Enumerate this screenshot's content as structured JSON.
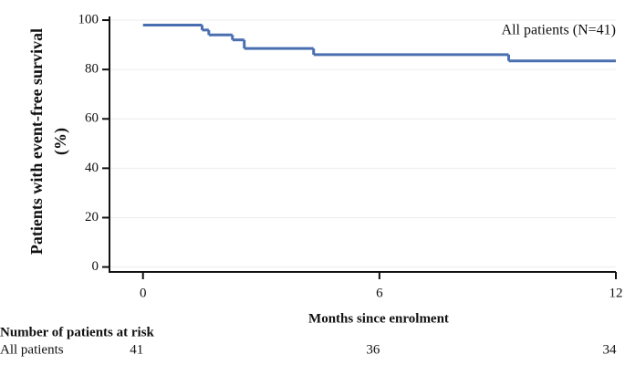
{
  "chart_data": {
    "type": "line",
    "step": true,
    "xlabel": "Months since enrolment",
    "ylabel": [
      "Patients with event-free survival",
      "(%)"
    ],
    "x": [
      0,
      1.5,
      1.67,
      2.27,
      2.57,
      4.33,
      9.28,
      12
    ],
    "series": [
      {
        "name": "All patients (N=41)",
        "color": "#4a6fb0",
        "values": [
          98,
          96,
          94,
          92,
          88.5,
          86,
          83.5,
          83.5
        ]
      }
    ],
    "xlim": [
      -0.85,
      12
    ],
    "xticks": [
      0,
      6,
      12
    ],
    "ylim": [
      -2,
      101.5
    ],
    "yticks": [
      0,
      20,
      40,
      60,
      80,
      100
    ],
    "grid": true,
    "risk_table": {
      "title": "Number of patients at risk",
      "rows": [
        {
          "label": "All patients",
          "values": [
            41,
            36,
            34
          ]
        }
      ]
    }
  }
}
